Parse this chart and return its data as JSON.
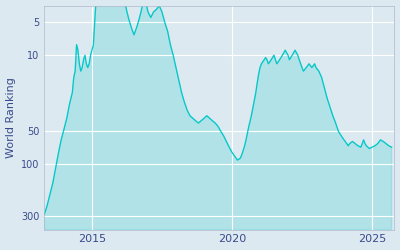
{
  "ylabel": "World Ranking",
  "bg_color": "#dce9f0",
  "line_color": "#00c8c8",
  "fill_color": "#00c8c8",
  "fill_alpha": 0.2,
  "yticks": [
    5,
    10,
    50,
    100,
    300
  ],
  "ytick_labels": [
    "5",
    "10",
    "50",
    "100",
    "300"
  ],
  "ylim_bottom": 400,
  "ylim_top": 3.5,
  "xlim_start": 2013.3,
  "xlim_end": 2025.8,
  "xticks": [
    2015,
    2020,
    2025
  ],
  "data": [
    [
      2013.3,
      290
    ],
    [
      2013.4,
      240
    ],
    [
      2013.5,
      190
    ],
    [
      2013.6,
      150
    ],
    [
      2013.7,
      110
    ],
    [
      2013.8,
      80
    ],
    [
      2013.9,
      60
    ],
    [
      2014.0,
      48
    ],
    [
      2014.1,
      38
    ],
    [
      2014.2,
      28
    ],
    [
      2014.3,
      22
    ],
    [
      2014.35,
      16
    ],
    [
      2014.4,
      14
    ],
    [
      2014.45,
      8
    ],
    [
      2014.5,
      9
    ],
    [
      2014.55,
      12
    ],
    [
      2014.6,
      14
    ],
    [
      2014.65,
      13
    ],
    [
      2014.7,
      11
    ],
    [
      2014.75,
      10
    ],
    [
      2014.8,
      12
    ],
    [
      2014.85,
      13
    ],
    [
      2014.9,
      12
    ],
    [
      2014.95,
      10
    ],
    [
      2015.0,
      9
    ],
    [
      2015.05,
      8
    ],
    [
      2015.1,
      5
    ],
    [
      2015.12,
      4
    ],
    [
      2015.15,
      3
    ],
    [
      2015.2,
      3
    ],
    [
      2015.25,
      2.5
    ],
    [
      2015.3,
      2
    ],
    [
      2015.35,
      2
    ],
    [
      2015.38,
      2
    ],
    [
      2015.4,
      1.8
    ],
    [
      2015.42,
      1.5
    ],
    [
      2015.45,
      1.3
    ],
    [
      2015.48,
      1.2
    ],
    [
      2015.5,
      1.1
    ],
    [
      2015.52,
      1.0
    ],
    [
      2015.54,
      1.0
    ],
    [
      2015.56,
      1.1
    ],
    [
      2015.58,
      1.2
    ],
    [
      2015.6,
      1.5
    ],
    [
      2015.65,
      2.0
    ],
    [
      2015.7,
      2.5
    ],
    [
      2015.75,
      3.0
    ],
    [
      2015.8,
      2.8
    ],
    [
      2015.85,
      2.5
    ],
    [
      2015.9,
      2.2
    ],
    [
      2015.95,
      2.0
    ],
    [
      2016.0,
      2.0
    ],
    [
      2016.05,
      2.2
    ],
    [
      2016.1,
      2.5
    ],
    [
      2016.15,
      3.0
    ],
    [
      2016.2,
      3.5
    ],
    [
      2016.25,
      4.0
    ],
    [
      2016.3,
      4.5
    ],
    [
      2016.35,
      5.0
    ],
    [
      2016.4,
      5.5
    ],
    [
      2016.45,
      6.0
    ],
    [
      2016.5,
      6.5
    ],
    [
      2016.55,
      6.0
    ],
    [
      2016.6,
      5.5
    ],
    [
      2016.65,
      5.0
    ],
    [
      2016.7,
      4.5
    ],
    [
      2016.75,
      4.0
    ],
    [
      2016.8,
      3.5
    ],
    [
      2016.85,
      3.0
    ],
    [
      2016.9,
      3.0
    ],
    [
      2016.95,
      3.5
    ],
    [
      2017.0,
      4.0
    ],
    [
      2017.1,
      4.5
    ],
    [
      2017.2,
      4.0
    ],
    [
      2017.3,
      3.8
    ],
    [
      2017.4,
      3.5
    ],
    [
      2017.5,
      4.0
    ],
    [
      2017.6,
      5.0
    ],
    [
      2017.7,
      6.0
    ],
    [
      2017.8,
      8.0
    ],
    [
      2017.9,
      10.0
    ],
    [
      2018.0,
      13.0
    ],
    [
      2018.1,
      17.0
    ],
    [
      2018.2,
      22.0
    ],
    [
      2018.3,
      27.0
    ],
    [
      2018.4,
      32.0
    ],
    [
      2018.5,
      36.0
    ],
    [
      2018.6,
      38.0
    ],
    [
      2018.7,
      40.0
    ],
    [
      2018.8,
      42.0
    ],
    [
      2018.9,
      40.0
    ],
    [
      2019.0,
      38.0
    ],
    [
      2019.1,
      36.0
    ],
    [
      2019.2,
      38.0
    ],
    [
      2019.3,
      40.0
    ],
    [
      2019.4,
      42.0
    ],
    [
      2019.5,
      45.0
    ],
    [
      2019.6,
      50.0
    ],
    [
      2019.7,
      55.0
    ],
    [
      2019.8,
      62.0
    ],
    [
      2019.9,
      70.0
    ],
    [
      2020.0,
      78.0
    ],
    [
      2020.1,
      85.0
    ],
    [
      2020.2,
      92.0
    ],
    [
      2020.3,
      88.0
    ],
    [
      2020.35,
      82.0
    ],
    [
      2020.4,
      75.0
    ],
    [
      2020.45,
      68.0
    ],
    [
      2020.5,
      60.0
    ],
    [
      2020.55,
      52.0
    ],
    [
      2020.6,
      45.0
    ],
    [
      2020.65,
      40.0
    ],
    [
      2020.7,
      35.0
    ],
    [
      2020.75,
      30.0
    ],
    [
      2020.8,
      26.0
    ],
    [
      2020.85,
      22.0
    ],
    [
      2020.9,
      18.0
    ],
    [
      2020.95,
      15.0
    ],
    [
      2021.0,
      13.0
    ],
    [
      2021.05,
      12.0
    ],
    [
      2021.1,
      11.5
    ],
    [
      2021.15,
      11.0
    ],
    [
      2021.2,
      10.5
    ],
    [
      2021.25,
      11.0
    ],
    [
      2021.3,
      12.0
    ],
    [
      2021.35,
      11.5
    ],
    [
      2021.4,
      11.0
    ],
    [
      2021.45,
      10.5
    ],
    [
      2021.5,
      10.0
    ],
    [
      2021.55,
      11.0
    ],
    [
      2021.6,
      12.0
    ],
    [
      2021.65,
      11.5
    ],
    [
      2021.7,
      11.0
    ],
    [
      2021.75,
      10.5
    ],
    [
      2021.8,
      10.0
    ],
    [
      2021.85,
      9.5
    ],
    [
      2021.9,
      9.0
    ],
    [
      2021.95,
      9.5
    ],
    [
      2022.0,
      10.0
    ],
    [
      2022.05,
      11.0
    ],
    [
      2022.1,
      10.5
    ],
    [
      2022.15,
      10.0
    ],
    [
      2022.2,
      9.5
    ],
    [
      2022.25,
      9.0
    ],
    [
      2022.3,
      9.5
    ],
    [
      2022.35,
      10.0
    ],
    [
      2022.4,
      11.0
    ],
    [
      2022.45,
      12.0
    ],
    [
      2022.5,
      13.0
    ],
    [
      2022.55,
      14.0
    ],
    [
      2022.6,
      13.5
    ],
    [
      2022.65,
      13.0
    ],
    [
      2022.7,
      12.5
    ],
    [
      2022.75,
      12.0
    ],
    [
      2022.8,
      12.5
    ],
    [
      2022.85,
      13.0
    ],
    [
      2022.9,
      12.5
    ],
    [
      2022.95,
      12.0
    ],
    [
      2023.0,
      13.0
    ],
    [
      2023.1,
      14.0
    ],
    [
      2023.2,
      16.0
    ],
    [
      2023.3,
      20.0
    ],
    [
      2023.4,
      25.0
    ],
    [
      2023.5,
      30.0
    ],
    [
      2023.6,
      36.0
    ],
    [
      2023.7,
      42.0
    ],
    [
      2023.8,
      50.0
    ],
    [
      2023.9,
      55.0
    ],
    [
      2024.0,
      60.0
    ],
    [
      2024.1,
      65.0
    ],
    [
      2024.15,
      68.0
    ],
    [
      2024.2,
      65.0
    ],
    [
      2024.3,
      62.0
    ],
    [
      2024.4,
      65.0
    ],
    [
      2024.5,
      68.0
    ],
    [
      2024.6,
      70.0
    ],
    [
      2024.65,
      65.0
    ],
    [
      2024.7,
      60.0
    ],
    [
      2024.75,
      65.0
    ],
    [
      2024.8,
      68.0
    ],
    [
      2024.85,
      70.0
    ],
    [
      2024.9,
      72.0
    ],
    [
      2025.0,
      70.0
    ],
    [
      2025.1,
      68.0
    ],
    [
      2025.2,
      65.0
    ],
    [
      2025.3,
      60.0
    ],
    [
      2025.4,
      62.0
    ],
    [
      2025.5,
      65.0
    ],
    [
      2025.6,
      68.0
    ],
    [
      2025.7,
      70.0
    ]
  ]
}
